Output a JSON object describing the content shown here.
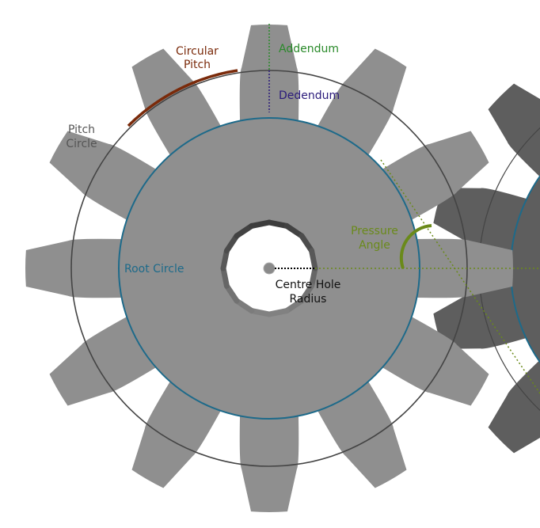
{
  "diagram": {
    "labels": {
      "circular_pitch_line1": "Circular",
      "circular_pitch_line2": "Pitch",
      "pitch_circle_line1": "Pitch",
      "pitch_circle_line2": "Circle",
      "addendum": "Addendum",
      "dedendum": "Dedendum",
      "pressure_angle_line1": "Pressure",
      "pressure_angle_line2": "Angle",
      "root_circle": "Root Circle",
      "centre_hole_line1": "Centre Hole",
      "centre_hole_line2": "Radius"
    },
    "colors": {
      "gear_fill": "#8f8f8f",
      "second_gear_fill": "#5e5e5e",
      "pitch_circle": "#444444",
      "root_circle": "#1d6a8a",
      "circular_pitch": "#7a2a0a",
      "addendum": "#2a8a2a",
      "dedendum": "#2a1a7a",
      "pressure_angle": "#6a8a1a",
      "text_dark": "#222222",
      "pitch_label": "#555555"
    },
    "main_gear_teeth": 12,
    "second_gear_teeth": 12
  }
}
